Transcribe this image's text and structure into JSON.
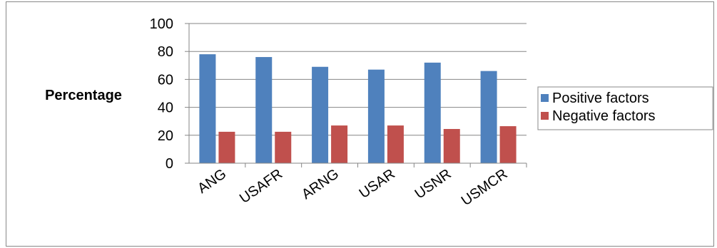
{
  "chart_data": {
    "type": "bar",
    "title": "",
    "xlabel": "",
    "ylabel": "Percentage",
    "ylim": [
      0,
      100
    ],
    "yticks": [
      0,
      20,
      40,
      60,
      80,
      100
    ],
    "grid": true,
    "legend_placement": "right",
    "categories": [
      "ANG",
      "USAFR",
      "ARNG",
      "USAR",
      "USNR",
      "USMCR"
    ],
    "series": [
      {
        "name": "Positive factors",
        "color": "#4F81BD",
        "values": [
          78,
          76,
          69,
          67,
          72,
          66
        ]
      },
      {
        "name": "Negative factors",
        "color": "#C0504D",
        "values": [
          22.5,
          22.5,
          27,
          27,
          24.5,
          26.5
        ]
      }
    ]
  }
}
